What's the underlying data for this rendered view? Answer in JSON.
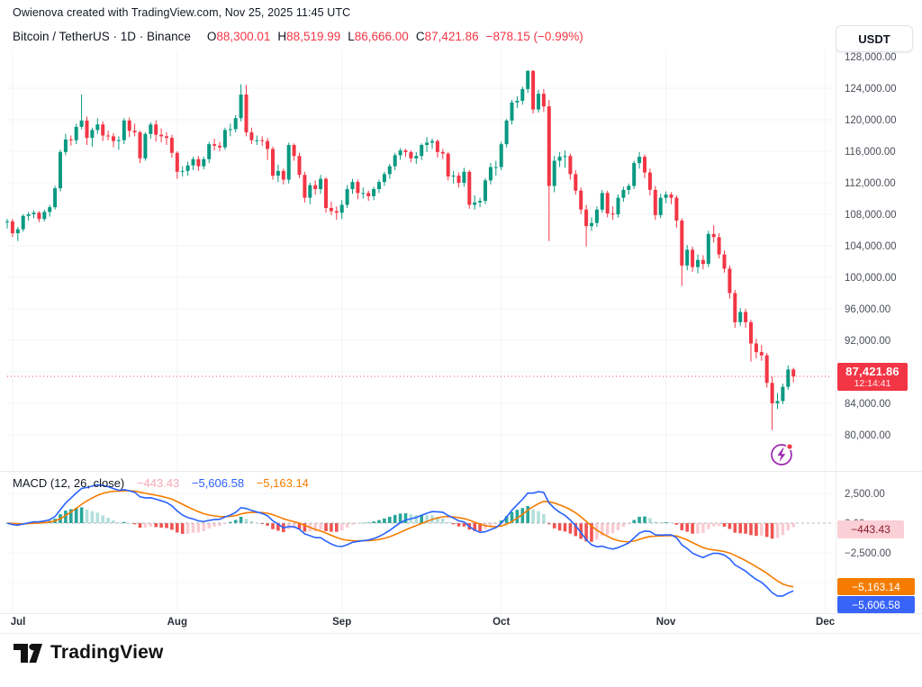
{
  "header": {
    "attribution": "Owienova created with TradingView.com, Nov 25, 2025 11:45 UTC"
  },
  "symbol_bar": {
    "title": "Bitcoin / TetherUS · 1D · Binance",
    "open_label": "O",
    "open_value": "88,300.01",
    "high_label": "H",
    "high_value": "88,519.99",
    "low_label": "L",
    "low_value": "86,666.00",
    "close_label": "C",
    "close_value": "87,421.86",
    "change": "−878.15 (−0.99%)"
  },
  "currency_button": {
    "label": "USDT"
  },
  "price_scale": {
    "current_price_label": "87,421.86",
    "countdown": "12:14:41",
    "ticks": [
      {
        "label": "128,000.00",
        "value": 128000
      },
      {
        "label": "124,000.00",
        "value": 124000
      },
      {
        "label": "120,000.00",
        "value": 120000
      },
      {
        "label": "116,000.00",
        "value": 116000
      },
      {
        "label": "112,000.00",
        "value": 112000
      },
      {
        "label": "108,000.00",
        "value": 108000
      },
      {
        "label": "104,000.00",
        "value": 104000
      },
      {
        "label": "100,000.00",
        "value": 100000
      },
      {
        "label": "96,000.00",
        "value": 96000
      },
      {
        "label": "92,000.00",
        "value": 92000
      },
      {
        "label": "88,000.00",
        "value": 88000
      },
      {
        "label": "84,000.00",
        "value": 84000
      },
      {
        "label": "80,000.00",
        "value": 80000
      }
    ]
  },
  "time_scale": {
    "months": [
      {
        "label": "Jul",
        "index": 1
      },
      {
        "label": "Aug",
        "index": 32
      },
      {
        "label": "Sep",
        "index": 63
      },
      {
        "label": "Oct",
        "index": 93
      },
      {
        "label": "Nov",
        "index": 124
      },
      {
        "label": "Dec",
        "index": 154
      }
    ]
  },
  "macd_pane": {
    "title": "MACD (12, 26, close)",
    "histogram_value": "−443.43",
    "macd_value": "−5,606.58",
    "signal_value": "−5,163.14",
    "histogram_badge": "−443.43",
    "signal_badge": "−5,163.14",
    "macd_badge": "−5,606.58",
    "ticks": [
      {
        "label": "2,500.00",
        "value": 2500
      },
      {
        "label": "0.00",
        "value": 0
      },
      {
        "label": "−2,500.00",
        "value": -2500
      }
    ]
  },
  "footer": {
    "brand": "TradingView"
  },
  "colors": {
    "up": "#089981",
    "down": "#f23645",
    "macd_line": "#2962ff",
    "signal_line": "#f57c00",
    "hist_up_grow": "#26a69a",
    "hist_up_fall": "#b2dfdb",
    "hist_down_fall": "#ef5350",
    "hist_down_grow": "#f9ccd3",
    "grid": "#f2f4f7",
    "axis_text": "#4a4e59",
    "time_text": "#2a2e39",
    "accent_red": "#f23645",
    "zero_line": "#9aa0ac"
  },
  "chart_data": {
    "type": "candlestick",
    "symbol": "BTCUSDT",
    "exchange": "Binance",
    "interval": "1D",
    "title": "Bitcoin / TetherUS",
    "unit": "thousands of USDT per candle [open, high, low, close]",
    "start_date": "Jun 30",
    "end_date": "Nov 25",
    "price_axis_range": [
      77500,
      128600
    ],
    "macd_axis_range": [
      -7300,
      3900
    ],
    "last_candle": {
      "open": 88300.01,
      "high": 88519.99,
      "low": 86666.0,
      "close": 87421.86,
      "change": -878.15,
      "change_pct": -0.99
    },
    "indicator": {
      "name": "MACD",
      "params": [
        12,
        26,
        9
      ],
      "source": "close",
      "macd": -5606.58,
      "signal": -5163.14,
      "histogram": -443.43
    },
    "candles": [
      [
        107.0,
        107.4,
        106.2,
        107.1
      ],
      [
        107.1,
        107.4,
        105.1,
        105.6
      ],
      [
        105.6,
        106.4,
        104.6,
        106.1
      ],
      [
        106.1,
        108.0,
        105.8,
        107.8
      ],
      [
        107.8,
        108.3,
        107.2,
        108.0
      ],
      [
        108.0,
        108.5,
        107.5,
        108.2
      ],
      [
        108.2,
        108.4,
        107.0,
        107.4
      ],
      [
        107.4,
        108.6,
        107.1,
        108.3
      ],
      [
        108.3,
        109.2,
        107.7,
        108.9
      ],
      [
        108.9,
        111.6,
        108.6,
        111.3
      ],
      [
        111.3,
        116.2,
        110.9,
        115.9
      ],
      [
        115.9,
        118.2,
        115.5,
        117.5
      ],
      [
        117.5,
        118.0,
        116.7,
        117.4
      ],
      [
        117.4,
        119.5,
        116.9,
        119.1
      ],
      [
        119.1,
        123.2,
        118.8,
        119.9
      ],
      [
        119.9,
        120.4,
        116.8,
        117.7
      ],
      [
        117.7,
        119.0,
        116.6,
        118.7
      ],
      [
        118.7,
        120.2,
        118.2,
        119.4
      ],
      [
        119.4,
        119.8,
        117.3,
        118.0
      ],
      [
        118.0,
        118.6,
        117.4,
        117.9
      ],
      [
        117.9,
        118.3,
        116.5,
        117.3
      ],
      [
        117.3,
        117.9,
        116.2,
        117.4
      ],
      [
        117.4,
        120.2,
        116.9,
        119.9
      ],
      [
        119.9,
        120.3,
        117.8,
        118.6
      ],
      [
        118.6,
        119.5,
        117.9,
        118.4
      ],
      [
        118.4,
        118.6,
        114.5,
        115.1
      ],
      [
        115.1,
        118.4,
        114.8,
        118.2
      ],
      [
        118.2,
        119.7,
        117.6,
        119.4
      ],
      [
        119.4,
        119.9,
        117.2,
        118.1
      ],
      [
        118.1,
        118.9,
        117.1,
        117.9
      ],
      [
        117.9,
        118.4,
        116.8,
        117.7
      ],
      [
        117.7,
        118.1,
        115.2,
        115.8
      ],
      [
        115.8,
        116.0,
        112.5,
        113.4
      ],
      [
        113.4,
        114.1,
        112.8,
        113.5
      ],
      [
        113.5,
        114.7,
        112.9,
        114.2
      ],
      [
        114.2,
        115.3,
        113.6,
        115.0
      ],
      [
        115.0,
        115.4,
        113.5,
        114.1
      ],
      [
        114.1,
        115.3,
        113.7,
        115.0
      ],
      [
        115.0,
        117.2,
        114.5,
        116.9
      ],
      [
        116.9,
        117.6,
        116.1,
        116.7
      ],
      [
        116.7,
        117.2,
        116.0,
        116.5
      ],
      [
        116.5,
        119.0,
        116.2,
        118.7
      ],
      [
        118.7,
        119.5,
        117.9,
        118.8
      ],
      [
        118.8,
        120.6,
        118.4,
        120.2
      ],
      [
        120.2,
        124.5,
        119.8,
        123.2
      ],
      [
        123.2,
        124.4,
        117.9,
        118.4
      ],
      [
        118.4,
        119.0,
        116.9,
        117.4
      ],
      [
        117.4,
        118.0,
        116.8,
        117.4
      ],
      [
        117.4,
        117.9,
        116.7,
        117.3
      ],
      [
        117.3,
        117.7,
        114.9,
        116.3
      ],
      [
        116.3,
        116.6,
        112.4,
        112.9
      ],
      [
        112.9,
        114.3,
        112.1,
        113.5
      ],
      [
        113.5,
        113.8,
        111.8,
        112.4
      ],
      [
        112.4,
        117.1,
        111.9,
        116.8
      ],
      [
        116.8,
        117.0,
        114.8,
        115.4
      ],
      [
        115.4,
        115.8,
        112.6,
        113.0
      ],
      [
        113.0,
        113.4,
        109.5,
        110.1
      ],
      [
        110.1,
        112.0,
        109.3,
        111.7
      ],
      [
        111.7,
        112.3,
        110.5,
        111.2
      ],
      [
        111.2,
        113.0,
        110.6,
        112.5
      ],
      [
        112.5,
        112.7,
        108.2,
        108.8
      ],
      [
        108.8,
        109.6,
        107.9,
        108.4
      ],
      [
        108.4,
        109.0,
        107.3,
        108.2
      ],
      [
        108.2,
        109.8,
        107.4,
        109.2
      ],
      [
        109.2,
        111.7,
        108.8,
        111.2
      ],
      [
        111.2,
        112.5,
        110.6,
        112.1
      ],
      [
        112.1,
        112.4,
        109.9,
        110.7
      ],
      [
        110.7,
        111.4,
        110.0,
        110.7
      ],
      [
        110.7,
        111.0,
        109.7,
        110.3
      ],
      [
        110.3,
        111.5,
        109.8,
        111.2
      ],
      [
        111.2,
        112.4,
        110.7,
        112.1
      ],
      [
        112.1,
        113.4,
        111.6,
        113.1
      ],
      [
        113.1,
        114.4,
        112.5,
        114.1
      ],
      [
        114.1,
        115.8,
        113.6,
        115.5
      ],
      [
        115.5,
        116.4,
        114.9,
        116.1
      ],
      [
        116.1,
        116.3,
        115.3,
        115.9
      ],
      [
        115.9,
        116.1,
        114.6,
        115.1
      ],
      [
        115.1,
        115.9,
        114.4,
        115.4
      ],
      [
        115.4,
        117.0,
        114.9,
        116.8
      ],
      [
        116.8,
        117.8,
        115.9,
        117.1
      ],
      [
        117.1,
        117.6,
        116.3,
        117.3
      ],
      [
        117.3,
        117.5,
        115.2,
        115.9
      ],
      [
        115.9,
        116.3,
        115.0,
        115.7
      ],
      [
        115.7,
        115.9,
        112.3,
        112.8
      ],
      [
        112.8,
        113.5,
        111.9,
        112.9
      ],
      [
        112.9,
        113.3,
        111.4,
        112.0
      ],
      [
        112.0,
        113.9,
        111.5,
        113.4
      ],
      [
        113.4,
        113.6,
        108.7,
        109.2
      ],
      [
        109.2,
        110.4,
        108.6,
        109.5
      ],
      [
        109.5,
        110.1,
        108.9,
        109.7
      ],
      [
        109.7,
        112.6,
        109.3,
        112.3
      ],
      [
        112.3,
        114.5,
        111.8,
        114.0
      ],
      [
        114.0,
        114.8,
        112.9,
        114.0
      ],
      [
        114.0,
        117.2,
        113.6,
        116.9
      ],
      [
        116.9,
        120.1,
        116.5,
        119.9
      ],
      [
        119.9,
        122.5,
        119.4,
        122.2
      ],
      [
        122.2,
        123.0,
        121.5,
        122.4
      ],
      [
        122.4,
        124.2,
        121.9,
        123.9
      ],
      [
        123.9,
        126.3,
        123.4,
        126.2
      ],
      [
        126.2,
        126.3,
        120.8,
        121.3
      ],
      [
        121.3,
        123.8,
        120.9,
        123.3
      ],
      [
        123.3,
        123.9,
        121.0,
        121.7
      ],
      [
        121.7,
        122.5,
        104.6,
        111.6
      ],
      [
        111.6,
        115.4,
        110.8,
        114.8
      ],
      [
        114.8,
        115.9,
        114.0,
        115.3
      ],
      [
        115.3,
        116.1,
        113.9,
        115.4
      ],
      [
        115.4,
        115.7,
        112.4,
        113.1
      ],
      [
        113.1,
        113.6,
        110.5,
        111.0
      ],
      [
        111.0,
        111.4,
        108.0,
        108.6
      ],
      [
        108.6,
        109.2,
        103.9,
        106.5
      ],
      [
        106.5,
        107.6,
        105.9,
        106.9
      ],
      [
        106.9,
        109.0,
        106.4,
        108.6
      ],
      [
        108.6,
        111.1,
        108.2,
        110.7
      ],
      [
        110.7,
        111.0,
        107.6,
        108.1
      ],
      [
        108.1,
        109.0,
        107.3,
        108.0
      ],
      [
        108.0,
        110.5,
        107.6,
        110.1
      ],
      [
        110.1,
        111.5,
        109.6,
        111.1
      ],
      [
        111.1,
        111.9,
        110.5,
        111.6
      ],
      [
        111.6,
        114.8,
        111.2,
        114.5
      ],
      [
        114.5,
        115.9,
        113.8,
        115.3
      ],
      [
        115.3,
        115.6,
        112.6,
        113.3
      ],
      [
        113.3,
        113.8,
        110.4,
        111.1
      ],
      [
        111.1,
        111.6,
        107.3,
        107.9
      ],
      [
        107.9,
        110.6,
        107.5,
        110.1
      ],
      [
        110.1,
        110.9,
        109.4,
        110.5
      ],
      [
        110.5,
        110.8,
        109.3,
        110.1
      ],
      [
        110.1,
        110.4,
        106.3,
        107.2
      ],
      [
        107.2,
        107.5,
        98.9,
        101.5
      ],
      [
        101.5,
        104.1,
        100.9,
        103.5
      ],
      [
        103.5,
        103.9,
        100.7,
        101.3
      ],
      [
        101.3,
        102.9,
        100.5,
        102.2
      ],
      [
        102.2,
        102.8,
        101.0,
        101.7
      ],
      [
        101.7,
        105.9,
        101.3,
        105.5
      ],
      [
        105.5,
        106.6,
        104.4,
        105.1
      ],
      [
        105.1,
        105.6,
        102.4,
        102.9
      ],
      [
        102.9,
        103.4,
        100.6,
        101.1
      ],
      [
        101.1,
        101.5,
        97.3,
        98.0
      ],
      [
        98.0,
        98.4,
        93.6,
        94.3
      ],
      [
        94.3,
        96.1,
        93.8,
        95.6
      ],
      [
        95.6,
        96.0,
        93.6,
        94.3
      ],
      [
        94.3,
        94.6,
        89.3,
        91.6
      ],
      [
        91.6,
        92.2,
        89.7,
        90.5
      ],
      [
        90.5,
        91.4,
        89.4,
        90.1
      ],
      [
        90.1,
        90.4,
        86.0,
        86.6
      ],
      [
        86.6,
        87.4,
        80.6,
        84.0
      ],
      [
        84.0,
        85.3,
        83.3,
        84.3
      ],
      [
        84.3,
        86.5,
        83.9,
        86.1
      ],
      [
        86.1,
        88.8,
        85.7,
        88.3
      ],
      [
        88.3,
        88.52,
        86.67,
        87.42
      ]
    ]
  }
}
